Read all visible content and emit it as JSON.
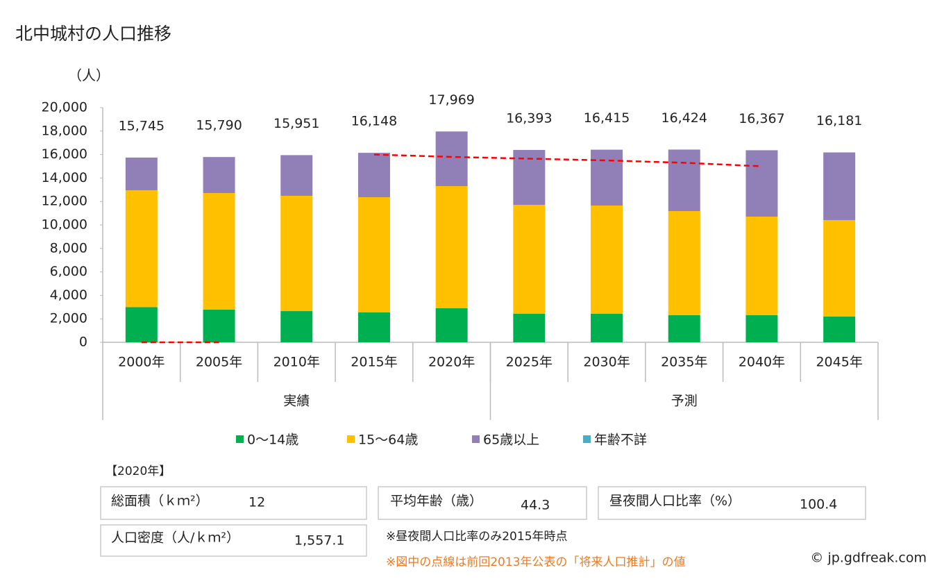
{
  "chart_data": {
    "type": "stacked_bar",
    "title": "北中城村の人口推移",
    "y_axis_label": "（人）",
    "categories": [
      "2000年",
      "2005年",
      "2010年",
      "2015年",
      "2020年",
      "2025年",
      "2030年",
      "2035年",
      "2040年",
      "2045年"
    ],
    "groups": [
      {
        "label": "実績",
        "span": [
          0,
          4
        ]
      },
      {
        "label": "予測",
        "span": [
          5,
          9
        ]
      }
    ],
    "series": [
      {
        "name": "0〜14歳",
        "color": "#00b050",
        "values": [
          3000,
          2780,
          2660,
          2545,
          2900,
          2426,
          2426,
          2308,
          2308,
          2189
        ]
      },
      {
        "name": "15〜64歳",
        "color": "#ffc000",
        "values": [
          9950,
          9940,
          9825,
          9822,
          10413,
          9290,
          9231,
          8875,
          8402,
          8225
        ]
      },
      {
        "name": "65歳以上",
        "color": "#9180b8",
        "values": [
          2795,
          3070,
          3466,
          3781,
          4656,
          4677,
          4758,
          5241,
          5657,
          5767
        ]
      },
      {
        "name": "年齢不詳",
        "color": "#4bacc6",
        "values": [
          null,
          null,
          null,
          null,
          null,
          null,
          null,
          null,
          null,
          null
        ]
      }
    ],
    "totals": [
      15745,
      15790,
      15951,
      16148,
      17969,
      16393,
      16415,
      16424,
      16367,
      16181
    ],
    "total_labels": [
      "15,745",
      "15,790",
      "15,951",
      "16,148",
      "17,969",
      "16,393",
      "16,415",
      "16,424",
      "16,367",
      "16,181"
    ],
    "previous_projection": {
      "color": "#ff0000",
      "values": [
        0,
        0,
        null,
        16000,
        15800,
        15650,
        15500,
        15300,
        15000,
        null
      ]
    },
    "ylim": [
      0,
      20000
    ],
    "yticks": [
      0,
      {
        "value": 2000,
        "label": "2,000"
      },
      {
        "value": 4000,
        "label": "4,000"
      },
      {
        "value": 6000,
        "label": "6,000"
      },
      {
        "value": 8000,
        "label": "8,000"
      },
      {
        "value": 10000,
        "label": "10,000"
      },
      {
        "value": 12000,
        "label": "12,000"
      },
      {
        "value": 14000,
        "label": "14,000"
      },
      {
        "value": 16000,
        "label": "16,000"
      },
      {
        "value": 18000,
        "label": "18,000"
      },
      {
        "value": 20000,
        "label": "20,000"
      }
    ],
    "legend_position": "bottom"
  },
  "info": {
    "year": "【2020年】",
    "boxes": [
      {
        "label": "総面積（ｋｍ²）",
        "value": "12"
      },
      {
        "label": "平均年齢（歳）",
        "value": "44.3"
      },
      {
        "label": "昼夜間人口比率（%）",
        "value": "100.4"
      },
      {
        "label": "人口密度（人/ｋｍ²）",
        "value": "1,557.1"
      }
    ],
    "note1": "※昼夜間人口比率のみ2015年時点",
    "note2": "※図中の点線は前回2013年公表の「将来人口推計」の値",
    "copyright": "© jp.gdfreak.com"
  }
}
